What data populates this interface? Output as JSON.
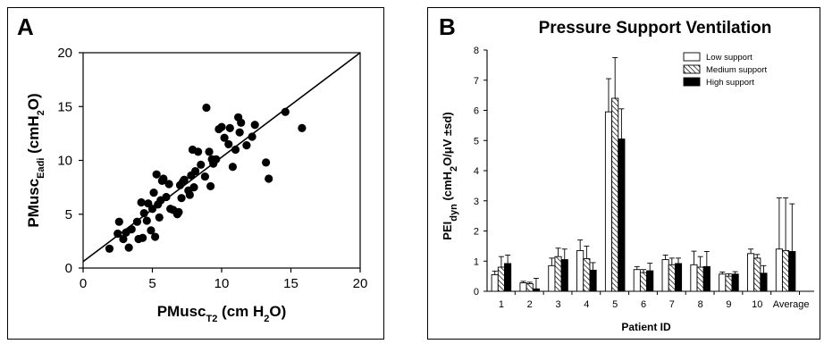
{
  "panels": {
    "a": {
      "letter": "A"
    },
    "b": {
      "letter": "B"
    }
  },
  "chart_data": [
    {
      "type": "scatter",
      "panel": "A",
      "title": "",
      "xlabel": {
        "main": "PMusc",
        "sub": "T2",
        "rest": " (cm H",
        "sub2": "2",
        "tail": "O)"
      },
      "ylabel": {
        "main": "PMusc",
        "sub": "Eadi",
        "rest": " (cmH",
        "sub2": "2",
        "tail": "O)"
      },
      "xlim": [
        0,
        20
      ],
      "ylim": [
        0,
        20
      ],
      "xticks": [
        "0",
        "5",
        "10",
        "15",
        "20"
      ],
      "yticks": [
        "0",
        "5",
        "10",
        "15",
        "20"
      ],
      "grid": false,
      "regression_line": {
        "x": [
          0,
          20
        ],
        "y": [
          0.6,
          20
        ]
      },
      "points": [
        [
          1.9,
          1.8
        ],
        [
          2.5,
          3.2
        ],
        [
          2.6,
          4.3
        ],
        [
          2.9,
          2.7
        ],
        [
          3.1,
          3.3
        ],
        [
          3.3,
          1.9
        ],
        [
          3.5,
          3.6
        ],
        [
          3.9,
          4.3
        ],
        [
          4.0,
          2.7
        ],
        [
          4.2,
          6.1
        ],
        [
          4.3,
          2.8
        ],
        [
          4.4,
          5.1
        ],
        [
          4.6,
          4.4
        ],
        [
          4.7,
          6.0
        ],
        [
          4.9,
          3.5
        ],
        [
          5.0,
          5.5
        ],
        [
          5.1,
          7.0
        ],
        [
          5.2,
          2.9
        ],
        [
          5.3,
          8.7
        ],
        [
          5.4,
          5.9
        ],
        [
          5.5,
          4.7
        ],
        [
          5.6,
          6.3
        ],
        [
          5.7,
          8.1
        ],
        [
          5.8,
          8.3
        ],
        [
          6.0,
          6.6
        ],
        [
          6.2,
          7.8
        ],
        [
          6.3,
          5.5
        ],
        [
          6.5,
          5.4
        ],
        [
          6.8,
          5.0
        ],
        [
          6.9,
          5.2
        ],
        [
          7.0,
          7.7
        ],
        [
          7.1,
          6.5
        ],
        [
          7.2,
          8.0
        ],
        [
          7.3,
          8.2
        ],
        [
          7.6,
          7.2
        ],
        [
          7.7,
          6.8
        ],
        [
          7.8,
          8.6
        ],
        [
          7.9,
          11.0
        ],
        [
          8.0,
          7.5
        ],
        [
          8.1,
          9.0
        ],
        [
          8.3,
          10.8
        ],
        [
          8.5,
          9.6
        ],
        [
          8.8,
          8.5
        ],
        [
          8.9,
          14.9
        ],
        [
          9.1,
          10.8
        ],
        [
          9.2,
          7.6
        ],
        [
          9.3,
          10.1
        ],
        [
          9.4,
          9.7
        ],
        [
          9.6,
          10.1
        ],
        [
          9.8,
          12.9
        ],
        [
          10.0,
          13.1
        ],
        [
          10.2,
          12.1
        ],
        [
          10.5,
          11.5
        ],
        [
          10.6,
          13.0
        ],
        [
          10.8,
          9.4
        ],
        [
          11.0,
          11.0
        ],
        [
          11.2,
          14.0
        ],
        [
          11.3,
          12.6
        ],
        [
          11.4,
          13.5
        ],
        [
          11.8,
          11.4
        ],
        [
          12.2,
          12.2
        ],
        [
          12.4,
          13.3
        ],
        [
          13.2,
          9.8
        ],
        [
          13.4,
          8.3
        ],
        [
          14.6,
          14.5
        ],
        [
          15.8,
          13.0
        ]
      ]
    },
    {
      "type": "bar",
      "panel": "B",
      "title": "Pressure Support Ventilation",
      "xlabel": "Patient ID",
      "ylabel": {
        "main": "PEI",
        "sub": "dyn",
        "rest": " (cmH",
        "sub2": "2",
        "tail": "O/μV ±sd)"
      },
      "ylim": [
        0,
        8
      ],
      "yticks": [
        "0",
        "1",
        "2",
        "3",
        "4",
        "5",
        "6",
        "7",
        "8"
      ],
      "grid": false,
      "legend_position": "top-right",
      "categories": [
        "1",
        "2",
        "3",
        "4",
        "5",
        "6",
        "7",
        "8",
        "9",
        "10",
        "Average"
      ],
      "series": [
        {
          "name": "Low support",
          "pattern": "open",
          "values": [
            0.55,
            0.28,
            0.85,
            1.35,
            5.95,
            0.72,
            1.05,
            0.88,
            0.57,
            1.25,
            1.4
          ],
          "errors": [
            0.12,
            0.05,
            0.25,
            0.35,
            1.1,
            0.1,
            0.15,
            0.45,
            0.07,
            0.15,
            1.7
          ]
        },
        {
          "name": "Medium support",
          "pattern": "hatched",
          "values": [
            0.8,
            0.25,
            1.15,
            1.08,
            6.4,
            0.62,
            0.88,
            0.8,
            0.5,
            1.1,
            1.35
          ],
          "errors": [
            0.35,
            0.05,
            0.28,
            0.42,
            1.35,
            0.1,
            0.22,
            0.35,
            0.08,
            0.12,
            1.75
          ]
        },
        {
          "name": "High support",
          "pattern": "solid",
          "values": [
            0.92,
            0.08,
            1.05,
            0.7,
            5.05,
            0.68,
            0.92,
            0.82,
            0.57,
            0.6,
            1.32
          ],
          "errors": [
            0.28,
            0.35,
            0.35,
            0.25,
            1.0,
            0.25,
            0.18,
            0.5,
            0.08,
            0.25,
            1.58
          ]
        }
      ]
    }
  ]
}
